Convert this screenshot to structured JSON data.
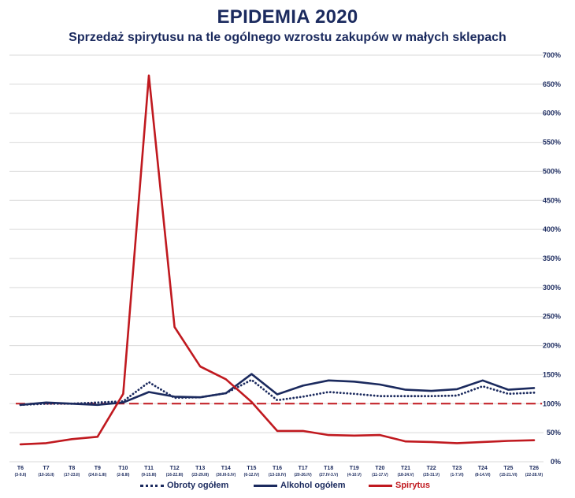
{
  "chart_data": {
    "type": "line",
    "title": "EPIDEMIA 2020",
    "subtitle": "Sprzedaż spirytusu na tle ogólnego wzrostu zakupów w małych sklepach",
    "categories": [
      "T6",
      "T7",
      "T8",
      "T9",
      "T10",
      "T11",
      "T12",
      "T13",
      "T14",
      "T15",
      "T16",
      "T17",
      "T18",
      "T19",
      "T20",
      "T21",
      "T22",
      "T23",
      "T24",
      "T25",
      "T26"
    ],
    "category_ranges": [
      "(3-9.II)",
      "(10-16.II)",
      "(17-23.II)",
      "(24.II-1.III)",
      "(2-8.III)",
      "(9-15.III)",
      "(16-22.III)",
      "(23-29.III)",
      "(30.III-5.IV)",
      "(6-12.IV)",
      "(13-19.IV)",
      "(20-26.IV)",
      "(27.IV-3.V)",
      "(4-10.V)",
      "(11-17.V)",
      "(18-24.V)",
      "(25-31.V)",
      "(1-7.VI)",
      "(8-14.VI)",
      "(15-21.VI)",
      "(22-28.VI)"
    ],
    "yticks": [
      "0%",
      "50%",
      "100%",
      "150%",
      "200%",
      "250%",
      "300%",
      "350%",
      "400%",
      "450%",
      "500%",
      "550%",
      "600%",
      "650%",
      "700%"
    ],
    "ylim": [
      0,
      700
    ],
    "reference_line": 100,
    "series": [
      {
        "name": "Obroty ogółem",
        "style": "dotted",
        "color": "#1b2a5e",
        "values": [
          98,
          100,
          100,
          102,
          104,
          137,
          110,
          111,
          118,
          141,
          106,
          112,
          120,
          117,
          113,
          113,
          113,
          114,
          130,
          117,
          119
        ]
      },
      {
        "name": "Alkohol ogółem",
        "style": "solid",
        "color": "#1b2a5e",
        "values": [
          98,
          102,
          100,
          98,
          102,
          120,
          112,
          111,
          118,
          151,
          116,
          131,
          140,
          138,
          133,
          124,
          122,
          125,
          140,
          124,
          127
        ]
      },
      {
        "name": "Spirytus",
        "style": "solid",
        "color": "#c0191f",
        "values": [
          30,
          32,
          39,
          43,
          117,
          665,
          232,
          164,
          142,
          103,
          53,
          53,
          46,
          45,
          46,
          35,
          34,
          32,
          34,
          36,
          37
        ]
      }
    ]
  },
  "legend": {
    "obroty": "Obroty ogółem",
    "alkohol": "Alkohol ogółem",
    "spirytus": "Spirytus"
  },
  "colors": {
    "navy": "#1b2a5e",
    "red": "#c0191f",
    "grid": "#d9d9d9"
  }
}
